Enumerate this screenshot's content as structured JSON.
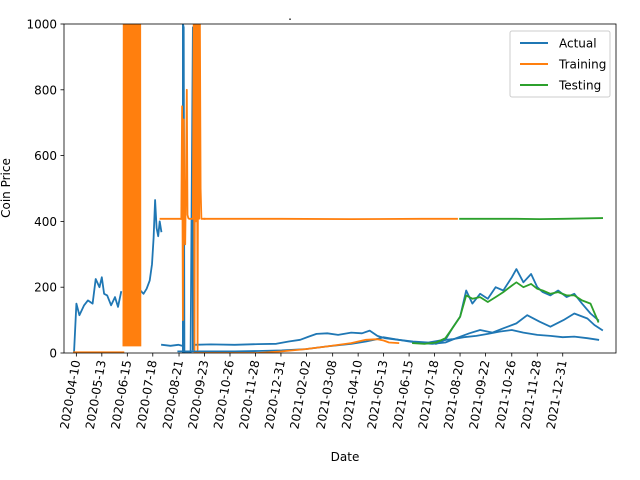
{
  "chart_data": {
    "type": "line",
    "title": "",
    "xlabel": "Date",
    "ylabel": "Coin Price",
    "x_ticks": [
      "2020-04-10",
      "2020-05-13",
      "2020-06-15",
      "2020-07-18",
      "2020-08-21",
      "2020-09-23",
      "2020-10-26",
      "2020-11-28",
      "2020-12-31",
      "2021-02-02",
      "2021-03-08",
      "2021-04-10",
      "2021-05-13",
      "2021-06-15",
      "2021-07-18",
      "2021-08-20",
      "2021-09-22",
      "2021-10-26",
      "2021-11-28",
      "2021-12-31"
    ],
    "y_ticks": [
      0,
      200,
      400,
      600,
      800,
      1000
    ],
    "ylim": [
      0,
      1000
    ],
    "xlim": [
      "2020-03-25",
      "2022-03-10"
    ],
    "grid": false,
    "legend_position": "upper right",
    "colors": {
      "actual": "#1f77b4",
      "training": "#ff7f0e",
      "testing": "#2ca02c"
    },
    "series": [
      {
        "name": "Actual",
        "color": "#1f77b4",
        "segments": [
          {
            "x": [
              "2020-04-07",
              "2020-04-10",
              "2020-04-14",
              "2020-04-20",
              "2020-04-25",
              "2020-05-01",
              "2020-05-05",
              "2020-05-10",
              "2020-05-13",
              "2020-05-16",
              "2020-05-20",
              "2020-05-25",
              "2020-05-30",
              "2020-06-03",
              "2020-06-07"
            ],
            "y": [
              0,
              150,
              115,
              145,
              160,
              150,
              225,
              200,
              230,
              180,
              175,
              145,
              170,
              140,
              185
            ]
          },
          {
            "x": [
              "2020-06-28",
              "2020-07-02",
              "2020-07-06",
              "2020-07-10",
              "2020-07-14",
              "2020-07-17",
              "2020-07-19",
              "2020-07-21",
              "2020-07-23",
              "2020-07-25",
              "2020-07-27",
              "2020-07-29"
            ],
            "y": [
              175,
              190,
              180,
              195,
              220,
              270,
              350,
              465,
              380,
              355,
              400,
              370
            ]
          },
          {
            "x": [
              "2020-07-30",
              "2020-08-10",
              "2020-08-20",
              "2020-08-25"
            ],
            "y": [
              25,
              22,
              25,
              22
            ]
          },
          {
            "x": [
              "2020-08-26",
              "2020-08-26",
              "2020-08-27",
              "2020-08-28",
              "2020-09-05",
              "2020-09-08",
              "2020-09-08",
              "2020-09-10"
            ],
            "y": [
              0,
              1000,
              990,
              0,
              0,
              990,
              10,
              25
            ]
          },
          {
            "x": [
              "2020-09-10",
              "2020-10-01",
              "2020-11-01",
              "2020-12-01",
              "2020-12-25",
              "2021-01-10",
              "2021-01-25",
              "2021-02-05",
              "2021-02-15",
              "2021-03-01",
              "2021-03-15",
              "2021-04-01",
              "2021-04-15",
              "2021-04-25",
              "2021-05-05",
              "2021-05-15",
              "2021-06-01",
              "2021-06-20",
              "2021-07-10",
              "2021-07-25",
              "2021-08-10",
              "2021-08-25",
              "2021-09-10",
              "2021-09-25",
              "2021-10-10",
              "2021-10-26",
              "2021-11-10",
              "2021-11-28",
              "2021-12-15",
              "2021-12-31",
              "2022-01-15",
              "2022-02-01",
              "2022-02-15"
            ],
            "y": [
              25,
              26,
              25,
              27,
              28,
              35,
              40,
              50,
              58,
              60,
              55,
              62,
              60,
              68,
              52,
              45,
              40,
              35,
              32,
              38,
              42,
              48,
              52,
              58,
              65,
              70,
              62,
              55,
              52,
              48,
              50,
              45,
              40
            ]
          },
          {
            "x": [
              "2020-08-20",
              "2020-10-01",
              "2020-11-01",
              "2020-12-01",
              "2021-01-01",
              "2021-02-01",
              "2021-03-01",
              "2021-04-01",
              "2021-04-20",
              "2021-05-01",
              "2021-05-13",
              "2021-06-01",
              "2021-06-15",
              "2021-07-01",
              "2021-07-15",
              "2021-08-01",
              "2021-08-15",
              "2021-09-01",
              "2021-09-15",
              "2021-10-01",
              "2021-10-15",
              "2021-11-01",
              "2021-11-15",
              "2021-12-01",
              "2021-12-15",
              "2022-01-01",
              "2022-01-15",
              "2022-02-01",
              "2022-02-10",
              "2022-02-20"
            ],
            "y": [
              5,
              5,
              5,
              6,
              8,
              12,
              20,
              28,
              35,
              40,
              48,
              40,
              35,
              30,
              28,
              32,
              45,
              60,
              70,
              62,
              75,
              90,
              115,
              95,
              80,
              100,
              120,
              105,
              85,
              70
            ]
          },
          {
            "x": [
              "2021-07-20",
              "2021-08-01",
              "2021-08-10",
              "2021-08-20",
              "2021-08-28",
              "2021-09-05",
              "2021-09-15",
              "2021-09-25",
              "2021-10-05",
              "2021-10-15",
              "2021-10-26",
              "2021-11-01",
              "2021-11-10",
              "2021-11-20",
              "2021-11-28",
              "2021-12-05",
              "2021-12-15",
              "2021-12-25",
              "2022-01-05",
              "2022-01-15",
              "2022-01-25",
              "2022-02-05",
              "2022-02-15"
            ],
            "y": [
              28,
              40,
              75,
              110,
              190,
              150,
              180,
              165,
              200,
              190,
              230,
              255,
              215,
              240,
              200,
              185,
              175,
              190,
              170,
              180,
              150,
              120,
              100
            ]
          }
        ]
      },
      {
        "name": "Training",
        "color": "#ff7f0e",
        "segments": [
          {
            "x": [
              "2020-04-07",
              "2020-06-10"
            ],
            "y": [
              2,
              2
            ]
          },
          {
            "x": [
              "2020-07-28",
              "2020-08-24"
            ],
            "y": [
              408,
              408
            ]
          },
          {
            "x": [
              "2020-08-24",
              "2020-08-25",
              "2020-08-26",
              "2020-08-27",
              "2020-08-28",
              "2020-08-29",
              "2020-08-30",
              "2020-08-31",
              "2020-09-01",
              "2020-09-02",
              "2020-09-03",
              "2020-09-04",
              "2020-09-05",
              "2020-09-06",
              "2020-09-07",
              "2020-09-08",
              "2020-09-09",
              "2020-09-10",
              "2020-09-11",
              "2020-09-12",
              "2020-09-13",
              "2020-09-14",
              "2020-09-15",
              "2020-09-16",
              "2020-09-17",
              "2020-09-18",
              "2020-09-19",
              "2020-09-20",
              "2020-09-21",
              "2020-09-22",
              "2020-09-23"
            ],
            "y": [
              408,
              750,
              100,
              710,
              400,
              330,
              540,
              800,
              420,
              410,
              408,
              408,
              408,
              408,
              408,
              408,
              1000,
              10,
              1000,
              400,
              1000,
              10,
              1000,
              408,
              1000,
              500,
              408,
              408,
              408,
              408,
              408
            ]
          },
          {
            "x": [
              "2020-09-23",
              "2021-01-01",
              "2021-04-01",
              "2021-07-01",
              "2021-08-16"
            ],
            "y": [
              408,
              408,
              407,
              408,
              408
            ]
          },
          {
            "x": [
              "2020-09-10",
              "2020-12-01",
              "2021-01-01",
              "2021-02-01",
              "2021-03-01",
              "2021-04-01",
              "2021-04-20",
              "2021-05-05",
              "2021-05-13",
              "2021-05-20",
              "2021-06-01"
            ],
            "y": [
              0,
              0,
              5,
              12,
              20,
              30,
              40,
              42,
              38,
              32,
              30
            ]
          }
        ]
      },
      {
        "name": "Testing",
        "color": "#2ca02c",
        "segments": [
          {
            "x": [
              "2021-08-20",
              "2021-10-01",
              "2021-11-01",
              "2021-12-01",
              "2022-01-01",
              "2022-02-20"
            ],
            "y": [
              408,
              408,
              408,
              407,
              408,
              410
            ]
          },
          {
            "x": [
              "2021-06-20",
              "2021-07-05",
              "2021-07-20",
              "2021-08-01",
              "2021-08-10",
              "2021-08-20",
              "2021-08-28",
              "2021-09-05",
              "2021-09-15",
              "2021-09-25",
              "2021-10-05",
              "2021-10-15",
              "2021-10-26",
              "2021-11-01",
              "2021-11-10",
              "2021-11-20",
              "2021-11-28",
              "2021-12-05",
              "2021-12-15",
              "2021-12-25",
              "2022-01-05",
              "2022-01-15",
              "2022-01-25",
              "2022-02-05",
              "2022-02-15"
            ],
            "y": [
              30,
              28,
              32,
              45,
              75,
              110,
              175,
              165,
              170,
              155,
              170,
              185,
              205,
              215,
              200,
              210,
              195,
              190,
              180,
              185,
              175,
              175,
              160,
              150,
              95
            ]
          }
        ]
      }
    ]
  },
  "title_mark": "."
}
